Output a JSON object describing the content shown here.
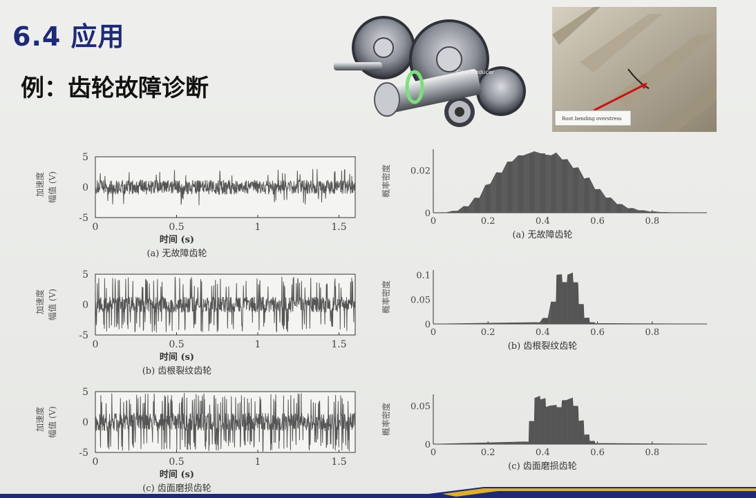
{
  "title": "6.4 应用",
  "subtitle": "例：齿轮故障诊断",
  "images": {
    "gear_label": "Gear Reducer",
    "photo_caption": "Root bending overstress"
  },
  "time_plots": [
    {
      "caption": "(a) 无故障齿轮",
      "ylabel1": "加速度",
      "ylabel2": "幅值 (V)",
      "xlabel": "时间 (s)",
      "yticks": [
        "5",
        "0",
        "-5"
      ],
      "xticks": [
        "0",
        "0.5",
        "1",
        "1.5"
      ]
    },
    {
      "caption": "(b) 齿根裂纹齿轮",
      "ylabel1": "加速度",
      "ylabel2": "幅值 (V)",
      "xlabel": "时间 (s)",
      "yticks": [
        "5",
        "0",
        "-5"
      ],
      "xticks": [
        "0",
        "0.5",
        "1",
        "1.5"
      ]
    },
    {
      "caption": "(c) 齿面磨损齿轮",
      "ylabel1": "加速度",
      "ylabel2": "幅值 (V)",
      "xlabel": "时间 (s)",
      "yticks": [
        "5",
        "0",
        "-5"
      ],
      "xticks": [
        "0",
        "0.5",
        "1",
        "1.5"
      ]
    }
  ],
  "pdf_plots": [
    {
      "caption": "(a) 无故障齿轮",
      "ylabel": "概率密度",
      "yticks": [
        "0.02",
        "0"
      ],
      "xticks": [
        "0",
        "0.2",
        "0.4",
        "0.6",
        "0.8"
      ]
    },
    {
      "caption": "(b) 齿根裂纹齿轮",
      "ylabel": "概率密度",
      "yticks": [
        "0.1",
        "0.05",
        "0"
      ],
      "xticks": [
        "0",
        "0.2",
        "0.4",
        "0.6",
        "0.8"
      ]
    },
    {
      "caption": "(c) 齿面磨损齿轮",
      "ylabel": "概率密度",
      "yticks": [
        "0.05",
        "0"
      ],
      "xticks": [
        "0",
        "0.2",
        "0.4",
        "0.6",
        "0.8"
      ]
    }
  ],
  "chart_data": [
    {
      "type": "line",
      "title": "(a) 无故障齿轮",
      "xlabel": "时间 (s)",
      "ylabel": "加速度 幅值 (V)",
      "xlim": [
        0,
        1.6
      ],
      "ylim": [
        -5,
        5
      ],
      "noise_amplitude": 1.2,
      "spike_rate": 0.05,
      "spike_amplitude": 3
    },
    {
      "type": "line",
      "title": "(b) 齿根裂纹齿轮",
      "xlabel": "时间 (s)",
      "ylabel": "加速度 幅值 (V)",
      "xlim": [
        0,
        1.6
      ],
      "ylim": [
        -5,
        5
      ],
      "noise_amplitude": 1.3,
      "spike_rate": 0.18,
      "spike_amplitude": 4.6
    },
    {
      "type": "line",
      "title": "(c) 齿面磨损齿轮",
      "xlabel": "时间 (s)",
      "ylabel": "加速度 幅值 (V)",
      "xlim": [
        0,
        1.6
      ],
      "ylim": [
        -5,
        5
      ],
      "noise_amplitude": 1.5,
      "spike_rate": 0.22,
      "spike_amplitude": 4.8
    },
    {
      "type": "bar",
      "title": "(a) 无故障齿轮",
      "ylabel": "概率密度",
      "xlim": [
        0,
        1
      ],
      "ylim": [
        0,
        0.03
      ],
      "x": [
        0.04,
        0.08,
        0.12,
        0.16,
        0.2,
        0.24,
        0.28,
        0.32,
        0.36,
        0.4,
        0.44,
        0.48,
        0.52,
        0.56,
        0.6,
        0.64,
        0.68,
        0.72,
        0.76,
        0.8,
        0.84,
        0.88,
        0.92,
        0.96
      ],
      "values": [
        0.0001,
        0.0008,
        0.003,
        0.007,
        0.013,
        0.019,
        0.024,
        0.027,
        0.028,
        0.028,
        0.027,
        0.025,
        0.021,
        0.016,
        0.011,
        0.007,
        0.004,
        0.002,
        0.001,
        0.0005,
        0.0002,
        0.0001,
        0.0001,
        0
      ]
    },
    {
      "type": "bar",
      "title": "(b) 齿根裂纹齿轮",
      "ylabel": "概率密度",
      "xlim": [
        0,
        1
      ],
      "ylim": [
        0,
        0.11
      ],
      "x": [
        0.38,
        0.41,
        0.44,
        0.46,
        0.48,
        0.5,
        0.52,
        0.54,
        0.56,
        0.58,
        0.6
      ],
      "values": [
        0.003,
        0.012,
        0.045,
        0.1,
        0.085,
        0.1,
        0.085,
        0.04,
        0.012,
        0.003,
        0.001
      ]
    },
    {
      "type": "bar",
      "title": "(c) 齿面磨损齿轮",
      "ylabel": "概率密度",
      "xlim": [
        0,
        1
      ],
      "ylim": [
        0,
        0.065
      ],
      "x": [
        0.34,
        0.36,
        0.38,
        0.4,
        0.42,
        0.44,
        0.46,
        0.48,
        0.5,
        0.52,
        0.54,
        0.56,
        0.58,
        0.6
      ],
      "values": [
        0.003,
        0.03,
        0.06,
        0.058,
        0.048,
        0.05,
        0.048,
        0.057,
        0.058,
        0.05,
        0.03,
        0.012,
        0.004,
        0.001
      ]
    }
  ]
}
